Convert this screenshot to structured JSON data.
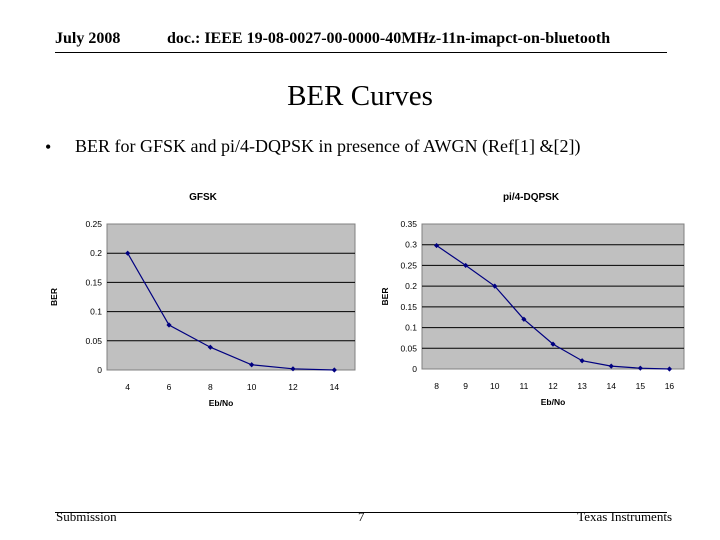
{
  "header": {
    "date": "July 2008",
    "doc": "doc.: IEEE 19-08-0027-00-0000-40MHz-11n-imapct-on-bluetooth"
  },
  "slide": {
    "title": "BER Curves",
    "bullet_marker": "•",
    "bullet_text": "BER for GFSK and pi/4-DQPSK in presence of AWGN (Ref[1] &[2])"
  },
  "footer": {
    "left": "Submission",
    "page": "7",
    "right": "Texas Instruments"
  },
  "colors": {
    "plot_bg": "#c0c0c0",
    "series": "#000080",
    "grid": "#000000"
  },
  "chart_data": [
    {
      "type": "line",
      "title": "GFSK",
      "xlabel": "Eb/No",
      "ylabel": "BER",
      "categories": [
        "4",
        "6",
        "8",
        "10",
        "12",
        "14"
      ],
      "series": [
        {
          "name": "GFSK",
          "values": [
            0.2,
            0.077,
            0.039,
            0.009,
            0.002,
            0.0
          ]
        }
      ],
      "yticks": [
        0,
        0.05,
        0.1,
        0.15,
        0.2,
        0.25
      ],
      "ytick_labels": [
        "0",
        "0.05",
        "0.1",
        "0.15",
        "0.2",
        "0.25"
      ],
      "ylim": [
        0,
        0.25
      ],
      "grid": "horizontal",
      "legend": "none"
    },
    {
      "type": "line",
      "title": "pi/4-DQPSK",
      "xlabel": "Eb/No",
      "ylabel": "BER",
      "categories": [
        "8",
        "9",
        "10",
        "11",
        "12",
        "13",
        "14",
        "15",
        "16"
      ],
      "series": [
        {
          "name": "pi/4-DQPSK",
          "values": [
            0.298,
            0.25,
            0.2,
            0.12,
            0.06,
            0.02,
            0.007,
            0.002,
            0.0
          ]
        }
      ],
      "yticks": [
        0,
        0.05,
        0.1,
        0.15,
        0.2,
        0.25,
        0.3,
        0.35
      ],
      "ytick_labels": [
        "0",
        "0.05",
        "0.1",
        "0.15",
        "0.2",
        "0.25",
        "0.3",
        "0.35"
      ],
      "ylim": [
        0,
        0.35
      ],
      "grid": "horizontal",
      "legend": "none"
    }
  ]
}
